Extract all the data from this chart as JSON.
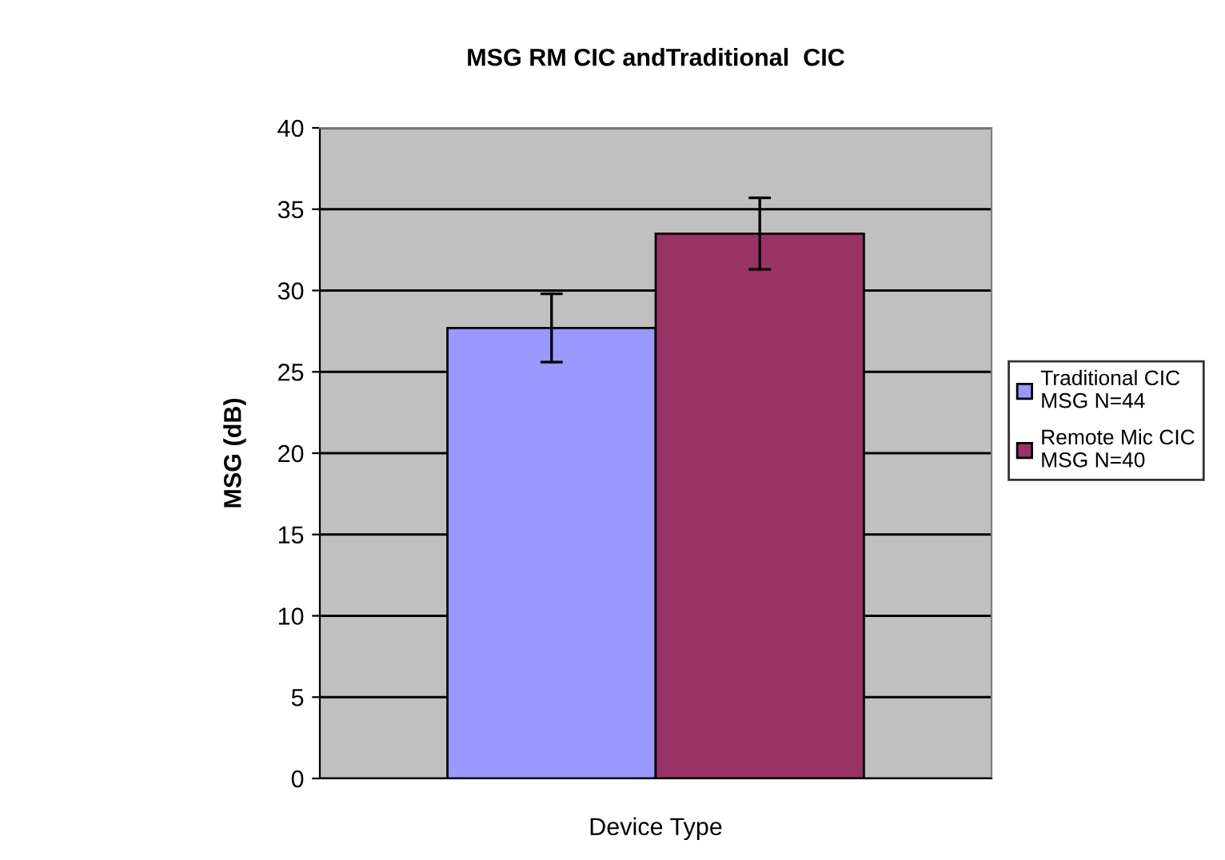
{
  "chart_data": {
    "type": "bar",
    "title": "MSG RM CIC andTraditional  CIC",
    "xlabel": "Device Type",
    "ylabel": "MSG (dB)",
    "categories": [
      null
    ],
    "series": [
      {
        "name": "Traditional CIC\nMSG N=44",
        "color": "#9999ff",
        "values": [
          27.7
        ],
        "errors": [
          2.1
        ]
      },
      {
        "name": "Remote Mic CIC\nMSG N=40",
        "color": "#993366",
        "values": [
          33.5
        ],
        "errors": [
          2.2
        ]
      }
    ],
    "ylim": [
      0,
      40
    ],
    "yticks": [
      0,
      5,
      10,
      15,
      20,
      25,
      30,
      35,
      40
    ],
    "grid": "y",
    "legend": "right"
  }
}
